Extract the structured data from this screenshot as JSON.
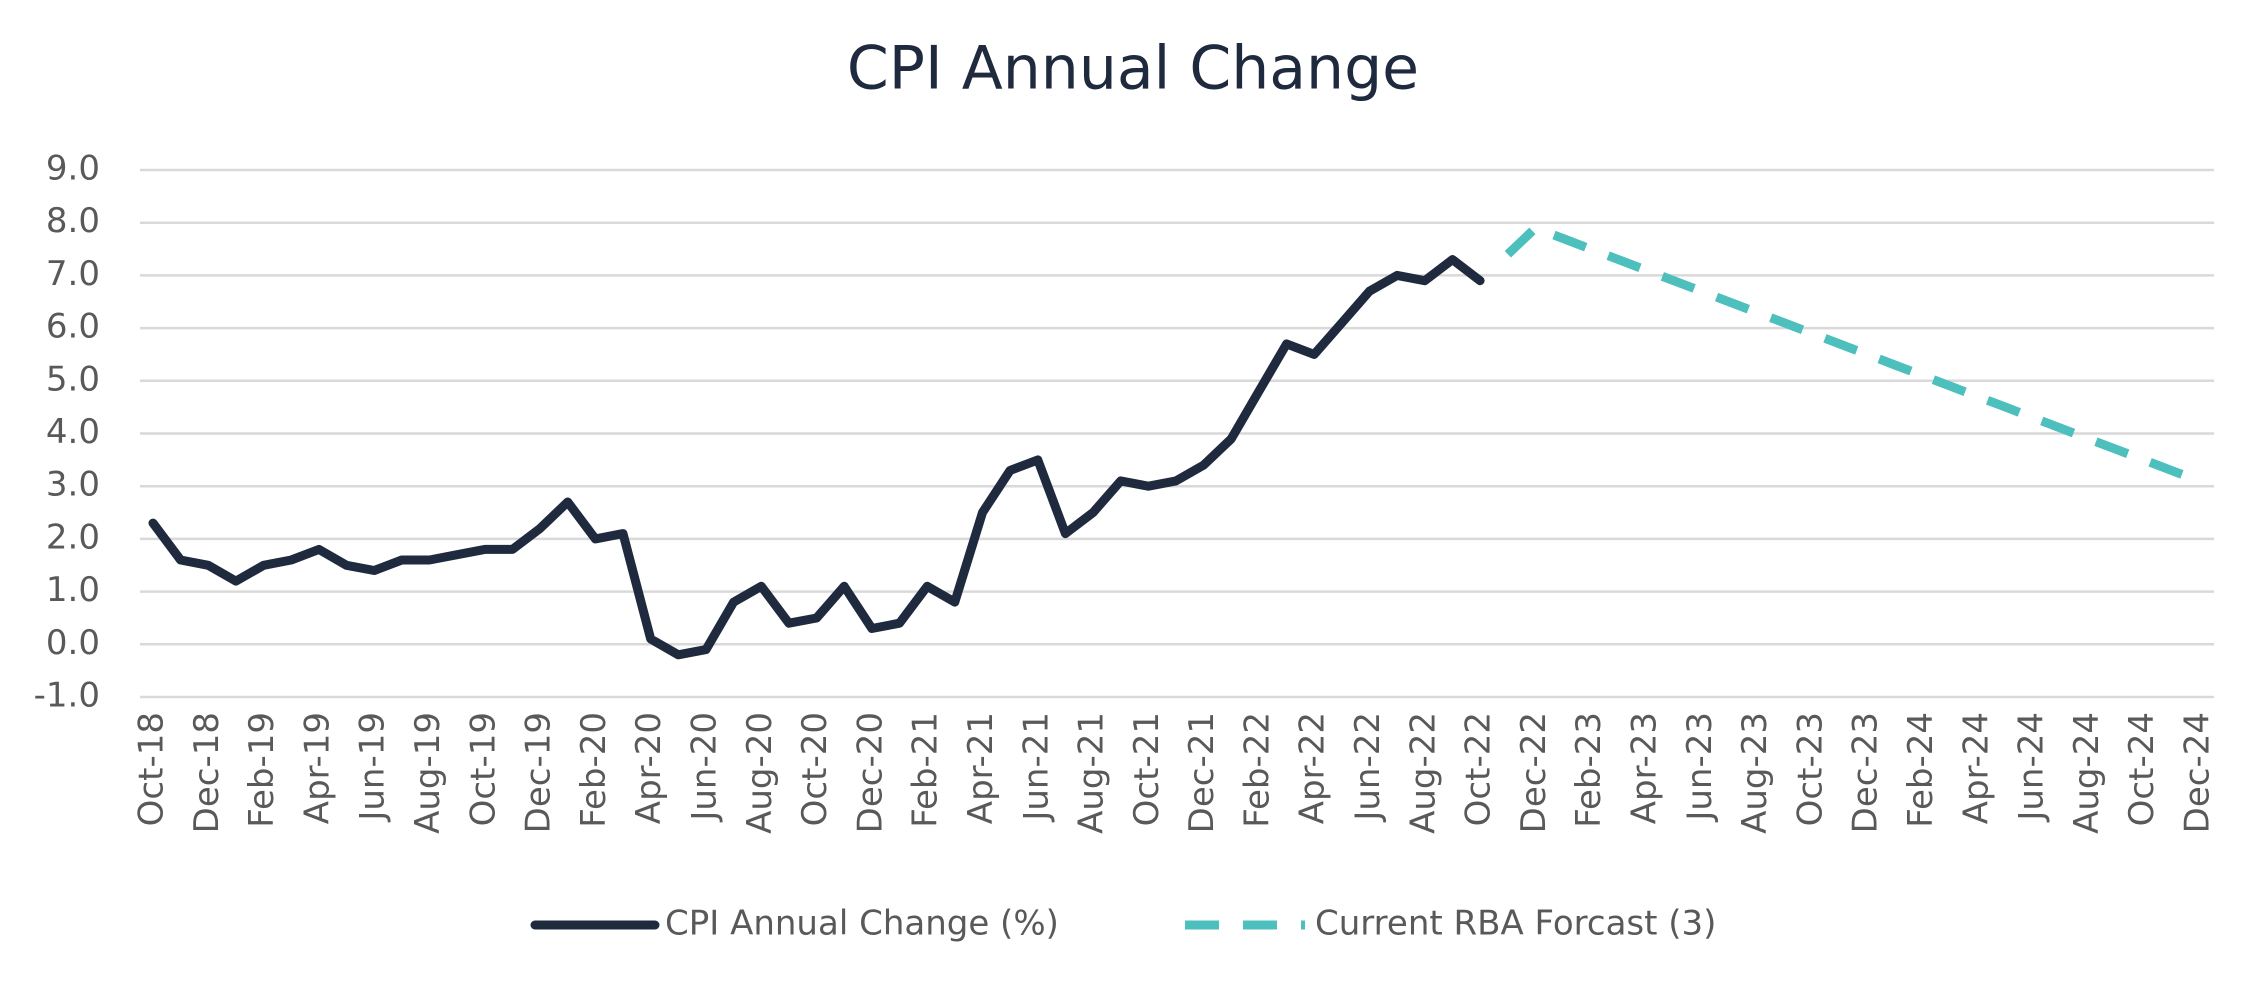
{
  "chart_data": {
    "type": "line",
    "title": "CPI Annual Change",
    "categories": [
      "Oct-18",
      null,
      "Dec-18",
      null,
      "Feb-19",
      null,
      "Apr-19",
      null,
      "Jun-19",
      null,
      "Aug-19",
      null,
      "Oct-19",
      null,
      "Dec-19",
      null,
      "Feb-20",
      null,
      "Apr-20",
      null,
      "Jun-20",
      null,
      "Aug-20",
      null,
      "Oct-20",
      null,
      "Dec-20",
      null,
      "Feb-21",
      null,
      "Apr-21",
      null,
      "Jun-21",
      null,
      "Aug-21",
      null,
      "Oct-21",
      null,
      "Dec-21",
      null,
      "Feb-22",
      null,
      "Apr-22",
      null,
      "Jun-22",
      null,
      "Aug-22",
      null,
      "Oct-22",
      null,
      "Dec-22",
      null,
      "Feb-23",
      null,
      "Apr-23",
      null,
      "Jun-23",
      null,
      "Aug-23",
      null,
      "Oct-23",
      null,
      "Dec-23",
      null,
      "Feb-24",
      null,
      "Apr-24",
      null,
      "Jun-24",
      null,
      "Aug-24",
      null,
      "Oct-24",
      null,
      "Dec-24"
    ],
    "series": [
      {
        "name": "CPI Annual Change (%)",
        "color": "#1f2a3f",
        "style": "solid",
        "values": [
          2.3,
          1.6,
          1.5,
          1.2,
          1.5,
          1.6,
          1.8,
          1.5,
          1.4,
          1.6,
          1.6,
          1.7,
          1.8,
          1.8,
          2.2,
          2.7,
          2.0,
          2.1,
          0.1,
          -0.2,
          -0.1,
          0.8,
          1.1,
          0.4,
          0.5,
          1.1,
          0.3,
          0.4,
          1.1,
          0.8,
          2.5,
          3.3,
          3.5,
          2.1,
          2.5,
          3.1,
          3.0,
          3.1,
          3.4,
          3.9,
          4.8,
          5.7,
          5.5,
          6.1,
          6.7,
          7.0,
          6.9,
          7.3,
          6.9,
          null,
          null,
          null,
          null,
          null,
          null,
          null,
          null,
          null,
          null,
          null,
          null,
          null,
          null,
          null,
          null,
          null,
          null,
          null,
          null,
          null,
          null,
          null,
          null,
          null,
          null
        ]
      },
      {
        "name": "Current RBA Forcast (3)",
        "color": "#4dbfbd",
        "style": "dashed",
        "values": [
          null,
          null,
          null,
          null,
          null,
          null,
          null,
          null,
          null,
          null,
          null,
          null,
          null,
          null,
          null,
          null,
          null,
          null,
          null,
          null,
          null,
          null,
          null,
          null,
          null,
          null,
          null,
          null,
          null,
          null,
          null,
          null,
          null,
          null,
          null,
          null,
          null,
          null,
          null,
          null,
          null,
          null,
          null,
          null,
          null,
          null,
          null,
          null,
          null,
          7.4,
          7.9,
          7.7,
          7.5,
          7.3,
          7.1,
          6.9,
          6.7,
          6.5,
          6.3,
          6.1,
          5.9,
          5.7,
          5.5,
          5.3,
          5.1,
          4.9,
          4.7,
          4.5,
          4.3,
          4.1,
          3.9,
          3.7,
          3.5,
          3.3,
          3.1
        ]
      }
    ],
    "ylim": [
      -1,
      9
    ],
    "yticks": [
      {
        "value": -1,
        "label": "-1.0"
      },
      {
        "value": 0,
        "label": "0.0"
      },
      {
        "value": 1,
        "label": "1.0"
      },
      {
        "value": 2,
        "label": "2.0"
      },
      {
        "value": 3,
        "label": "3.0"
      },
      {
        "value": 4,
        "label": "4.0"
      },
      {
        "value": 5,
        "label": "5.0"
      },
      {
        "value": 6,
        "label": "6.0"
      },
      {
        "value": 7,
        "label": "7.0"
      },
      {
        "value": 8,
        "label": "8.0"
      },
      {
        "value": 9,
        "label": "9.0"
      }
    ],
    "grid": true,
    "legend": "bottom"
  }
}
